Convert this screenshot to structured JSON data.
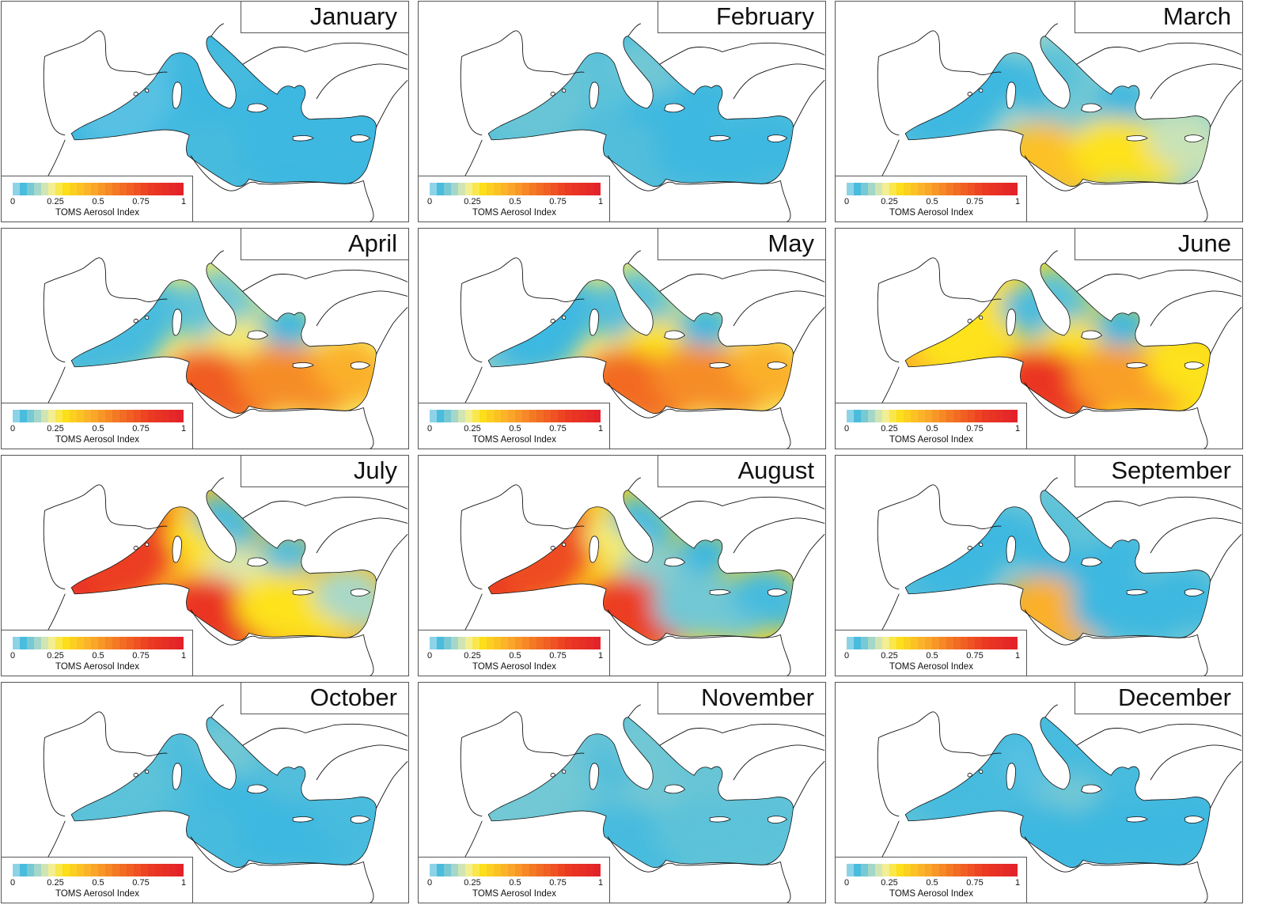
{
  "figure": {
    "panels": [
      {
        "month": "January",
        "levels": {
          "west": 0.04,
          "tyrrhenian": 0.05,
          "adriatic": 0.06,
          "aegean": 0.05,
          "ionian": 0.05,
          "south_central": 0.06,
          "southeast": 0.05,
          "levant": 0.05,
          "alboran": 0.05
        }
      },
      {
        "month": "February",
        "levels": {
          "west": 0.09,
          "tyrrhenian": 0.08,
          "adriatic": 0.1,
          "aegean": 0.05,
          "ionian": 0.05,
          "south_central": 0.07,
          "southeast": 0.05,
          "levant": 0.05,
          "alboran": 0.08
        }
      },
      {
        "month": "March",
        "levels": {
          "west": 0.05,
          "tyrrhenian": 0.05,
          "adriatic": 0.08,
          "aegean": 0.05,
          "ionian": 0.1,
          "south_central": 0.4,
          "southeast": 0.3,
          "levant": 0.18,
          "alboran": 0.06
        }
      },
      {
        "month": "April",
        "levels": {
          "west": 0.06,
          "tyrrhenian": 0.08,
          "adriatic": 0.1,
          "aegean": 0.05,
          "ionian": 0.25,
          "south_central": 0.7,
          "southeast": 0.55,
          "levant": 0.45,
          "alboran": 0.06
        }
      },
      {
        "month": "May",
        "levels": {
          "west": 0.05,
          "tyrrhenian": 0.07,
          "adriatic": 0.08,
          "aegean": 0.05,
          "ionian": 0.3,
          "south_central": 0.65,
          "southeast": 0.55,
          "levant": 0.45,
          "alboran": 0.1
        }
      },
      {
        "month": "June",
        "levels": {
          "west": 0.3,
          "tyrrhenian": 0.06,
          "adriatic": 0.08,
          "aegean": 0.05,
          "ionian": 0.3,
          "south_central": 0.85,
          "southeast": 0.5,
          "levant": 0.3,
          "alboran": 0.45
        }
      },
      {
        "month": "July",
        "levels": {
          "west": 0.8,
          "tyrrhenian": 0.3,
          "adriatic": 0.06,
          "aegean": 0.07,
          "ionian": 0.2,
          "south_central": 0.85,
          "southeast": 0.3,
          "levant": 0.15,
          "alboran": 0.9
        }
      },
      {
        "month": "August",
        "levels": {
          "west": 0.75,
          "tyrrhenian": 0.25,
          "adriatic": 0.06,
          "aegean": 0.05,
          "ionian": 0.12,
          "south_central": 0.8,
          "southeast": 0.1,
          "levant": 0.06,
          "alboran": 0.85
        }
      },
      {
        "month": "September",
        "levels": {
          "west": 0.05,
          "tyrrhenian": 0.05,
          "adriatic": 0.08,
          "aegean": 0.05,
          "ionian": 0.05,
          "south_central": 0.45,
          "southeast": 0.05,
          "levant": 0.05,
          "alboran": 0.07
        }
      },
      {
        "month": "October",
        "levels": {
          "west": 0.08,
          "tyrrhenian": 0.06,
          "adriatic": 0.1,
          "aegean": 0.07,
          "ionian": 0.05,
          "south_central": 0.06,
          "southeast": 0.05,
          "levant": 0.06,
          "alboran": 0.08
        }
      },
      {
        "month": "November",
        "levels": {
          "west": 0.1,
          "tyrrhenian": 0.07,
          "adriatic": 0.1,
          "aegean": 0.09,
          "ionian": 0.1,
          "south_central": 0.06,
          "southeast": 0.08,
          "levant": 0.08,
          "alboran": 0.1
        }
      },
      {
        "month": "December",
        "levels": {
          "west": 0.06,
          "tyrrhenian": 0.04,
          "adriatic": 0.06,
          "aegean": 0.06,
          "ionian": 0.1,
          "south_central": 0.05,
          "southeast": 0.05,
          "levant": 0.05,
          "alboran": 0.08
        }
      }
    ]
  },
  "legend": {
    "title": "TOMS Aerosol Index",
    "ticks": [
      "0",
      "0.25",
      "0.5",
      "0.75",
      "1"
    ],
    "tick_values": [
      0,
      0.25,
      0.5,
      0.75,
      1
    ],
    "range": [
      0,
      1
    ],
    "colors": {
      "0.00": "#c6e6ee",
      "0.05": "#3cb8e0",
      "0.15": "#a8d8c8",
      "0.22": "#f2f0a0",
      "0.30": "#fde21a",
      "0.45": "#fbb02a",
      "0.60": "#f47a24",
      "0.80": "#ec3c22",
      "1.00": "#e2202a"
    }
  },
  "colors": {
    "coastline": "#111111",
    "panel_border": "#555555",
    "background": "#ffffff"
  }
}
